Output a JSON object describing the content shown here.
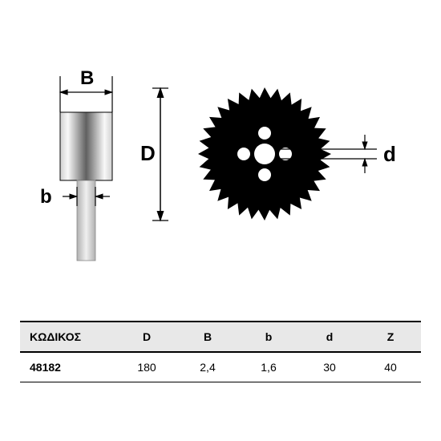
{
  "diagram": {
    "labels": {
      "B": "B",
      "b": "b",
      "D": "D",
      "d": "d"
    },
    "colors": {
      "stroke": "#000000",
      "blade_fill": "#000000",
      "background": "#ffffff",
      "steel_light": "#f0f0f0",
      "steel_dark": "#404040"
    },
    "stroke_width": 1.5,
    "label_fontsize": 24,
    "saw_teeth": 32
  },
  "table": {
    "columns": [
      "ΚΩΔΙΚΟΣ",
      "D",
      "B",
      "b",
      "d",
      "Z"
    ],
    "col_widths": [
      "24%",
      "15.2%",
      "15.2%",
      "15.2%",
      "15.2%",
      "15.2%"
    ],
    "rows": [
      [
        "48182",
        "180",
        "2,4",
        "1,6",
        "30",
        "40"
      ]
    ],
    "header_bg": "#e8e8e8",
    "border_color": "#000000",
    "fontsize": 14
  }
}
